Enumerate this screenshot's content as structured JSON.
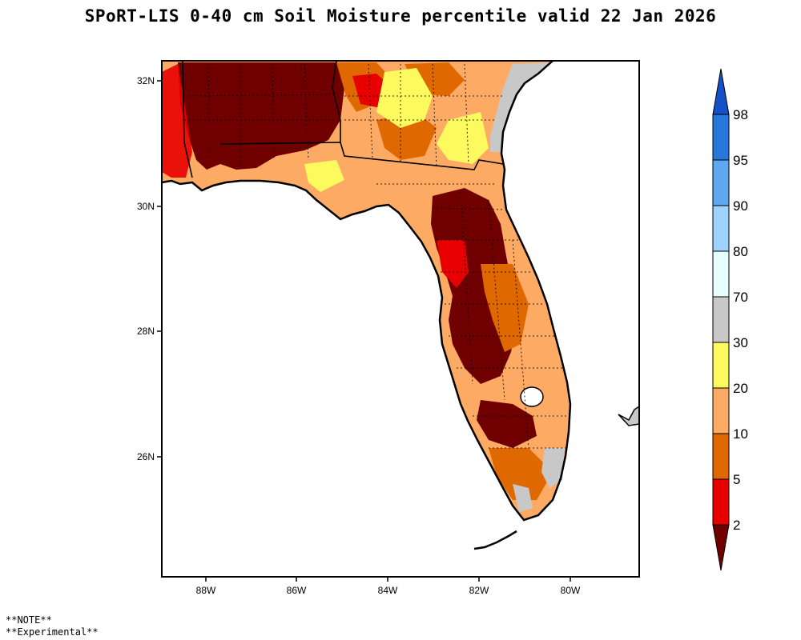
{
  "title": "SPoRT-LIS 0-40 cm Soil Moisture percentile valid 22 Jan 2026",
  "map": {
    "lat_ticks": [
      "32N",
      "30N",
      "28N",
      "26N"
    ],
    "lon_ticks": [
      "88W",
      "86W",
      "84W",
      "82W",
      "80W"
    ]
  },
  "legend": {
    "bins": [
      {
        "label": "2",
        "color": "#700000"
      },
      {
        "label": "5",
        "color": "#e80000"
      },
      {
        "label": "10",
        "color": "#e06800"
      },
      {
        "label": "20",
        "color": "#fcaa64"
      },
      {
        "label": "30",
        "color": "#fcfa5e"
      },
      {
        "label": "70",
        "color": "#c8c8c8"
      },
      {
        "label": "80",
        "color": "#e6fefe"
      },
      {
        "label": "90",
        "color": "#a0d2fe"
      },
      {
        "label": "95",
        "color": "#5ea8f2"
      },
      {
        "label": "98",
        "color": "#2878dc"
      }
    ],
    "top_arrow_color": "#1450c8"
  },
  "notes": [
    "**NOTE**",
    "**Experimental**"
  ]
}
